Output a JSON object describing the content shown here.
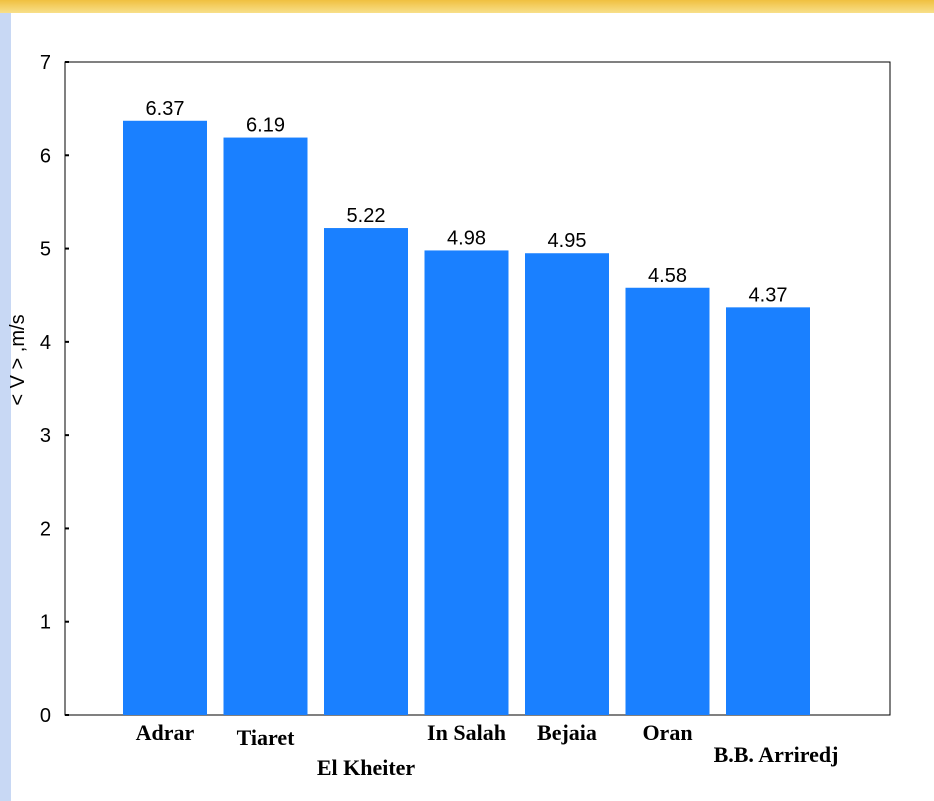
{
  "chart_data": {
    "type": "bar",
    "y_label": "< V > ,m/s",
    "categories": [
      "Adrar",
      "Tiaret",
      "El Kheiter",
      "In Salah",
      "Bejaia",
      "Oran",
      "B.B. Arriredj"
    ],
    "values": [
      6.37,
      6.19,
      5.22,
      4.98,
      4.95,
      4.58,
      4.37
    ],
    "color": "#1a80ff",
    "ylim": [
      0,
      7
    ],
    "yticks": [
      0,
      1,
      2,
      3,
      4,
      5,
      6,
      7
    ],
    "grid": false
  }
}
